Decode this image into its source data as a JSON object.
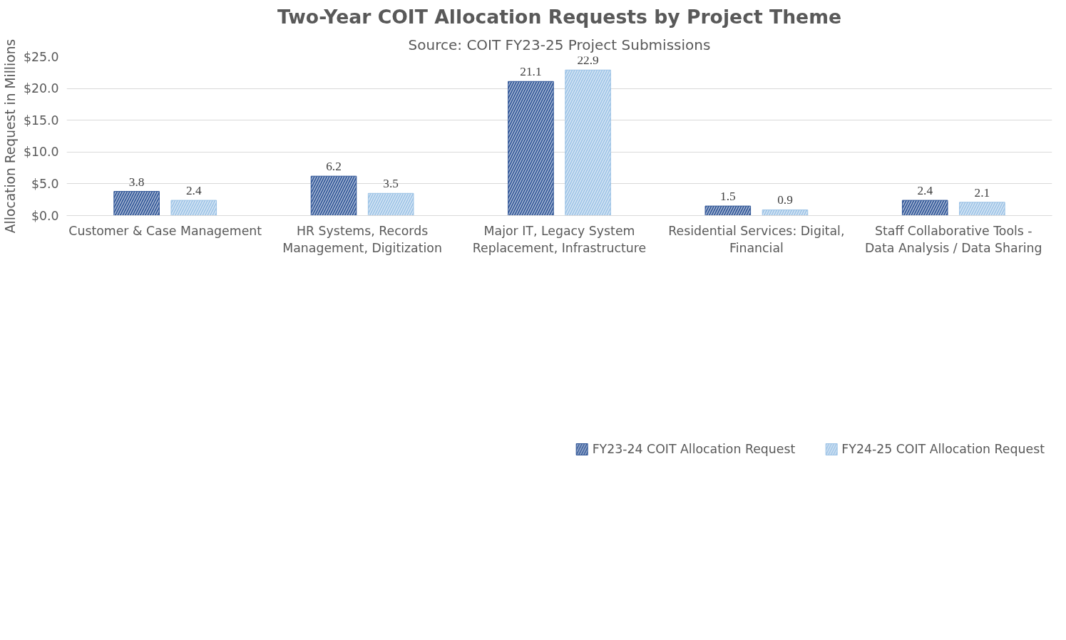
{
  "chart_data": {
    "type": "bar",
    "title": "Two-Year COIT Allocation Requests by Project Theme",
    "subtitle": "Source: COIT FY23-25 Project Submissions",
    "ylabel": "Allocation Request in Millions",
    "categories": [
      "Customer & Case Management",
      "HR Systems, Records Management, Digitization",
      "Major IT, Legacy System Replacement, Infrastructure",
      "Residential Services: Digital, Financial",
      "Staff Collaborative Tools - Data Analysis / Data Sharing"
    ],
    "series": [
      {
        "name": "FY23-24 COIT Allocation Request",
        "color": "#2f5597",
        "values": [
          3.8,
          6.2,
          21.1,
          1.5,
          2.4
        ]
      },
      {
        "name": "FY24-25 COIT Allocation Request",
        "color": "#9dc3e6",
        "values": [
          2.4,
          3.5,
          22.9,
          0.9,
          2.1
        ]
      }
    ],
    "ylim": [
      0,
      25
    ],
    "yticks": [
      {
        "value": 0,
        "label": "$0.0"
      },
      {
        "value": 5,
        "label": "$5.0"
      },
      {
        "value": 10,
        "label": "$10.0"
      },
      {
        "value": 15,
        "label": "$15.0"
      },
      {
        "value": 20,
        "label": "$20.0"
      },
      {
        "value": 25,
        "label": "$25.0"
      }
    ],
    "grid": "y",
    "legend": "bottom",
    "data_labels": true
  }
}
